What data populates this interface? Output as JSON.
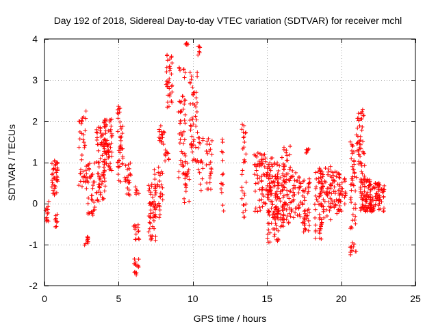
{
  "chart_data": {
    "type": "scatter",
    "title": "Day 192 of 2018, Sidereal Day-to-day VTEC variation (SDTVAR) for receiver mchl",
    "xlabel": "GPS time / hours",
    "ylabel": "SDTVAR / TECUs",
    "xlim": [
      0,
      25
    ],
    "ylim": [
      -2,
      4
    ],
    "xticks": [
      0,
      5,
      10,
      15,
      20,
      25
    ],
    "yticks": [
      -2,
      -1,
      0,
      1,
      2,
      3,
      4
    ],
    "grid": true,
    "marker": "+",
    "color": "#ff0000",
    "series": [
      {
        "name": "SDTVAR",
        "clusters": [
          {
            "x": [
              0.05,
              0.3
            ],
            "y": [
              -0.45,
              0.05
            ],
            "n": 14
          },
          {
            "x": [
              0.5,
              0.9
            ],
            "y": [
              0.2,
              1.05
            ],
            "n": 40
          },
          {
            "x": [
              0.7,
              0.9
            ],
            "y": [
              -0.6,
              -0.2
            ],
            "n": 10
          },
          {
            "x": [
              2.3,
              2.8
            ],
            "y": [
              0.4,
              2.25
            ],
            "n": 35
          },
          {
            "x": [
              2.7,
              2.95
            ],
            "y": [
              -1.05,
              -0.8
            ],
            "n": 10
          },
          {
            "x": [
              2.8,
              3.4
            ],
            "y": [
              -0.3,
              1.0
            ],
            "n": 40
          },
          {
            "x": [
              3.5,
              4.1
            ],
            "y": [
              0.0,
              1.9
            ],
            "n": 70
          },
          {
            "x": [
              4.0,
              4.6
            ],
            "y": [
              0.8,
              2.05
            ],
            "n": 60
          },
          {
            "x": [
              4.9,
              5.3
            ],
            "y": [
              0.5,
              2.4
            ],
            "n": 40
          },
          {
            "x": [
              5.4,
              5.9
            ],
            "y": [
              0.2,
              1.0
            ],
            "n": 25
          },
          {
            "x": [
              6.05,
              6.35
            ],
            "y": [
              -1.8,
              -1.3
            ],
            "n": 14
          },
          {
            "x": [
              6.0,
              6.4
            ],
            "y": [
              -0.9,
              -0.5
            ],
            "n": 14
          },
          {
            "x": [
              6.1,
              6.4
            ],
            "y": [
              0.2,
              0.4
            ],
            "n": 6
          },
          {
            "x": [
              7.0,
              7.5
            ],
            "y": [
              -0.9,
              0.5
            ],
            "n": 45
          },
          {
            "x": [
              7.4,
              8.0
            ],
            "y": [
              -0.4,
              0.95
            ],
            "n": 40
          },
          {
            "x": [
              7.7,
              8.1
            ],
            "y": [
              1.4,
              1.9
            ],
            "n": 18
          },
          {
            "x": [
              8.1,
              8.4
            ],
            "y": [
              0.9,
              1.3
            ],
            "n": 10
          },
          {
            "x": [
              8.2,
              8.6
            ],
            "y": [
              2.3,
              3.75
            ],
            "n": 35
          },
          {
            "x": [
              9.0,
              9.5
            ],
            "y": [
              0.6,
              3.45
            ],
            "n": 50
          },
          {
            "x": [
              9.35,
              9.75
            ],
            "y": [
              0.0,
              1.0
            ],
            "n": 20
          },
          {
            "x": [
              9.5,
              9.7
            ],
            "y": [
              3.85,
              3.9
            ],
            "n": 5
          },
          {
            "x": [
              9.8,
              10.3
            ],
            "y": [
              1.0,
              3.2
            ],
            "n": 45
          },
          {
            "x": [
              10.3,
              10.5
            ],
            "y": [
              3.5,
              3.85
            ],
            "n": 6
          },
          {
            "x": [
              10.3,
              10.7
            ],
            "y": [
              0.3,
              1.9
            ],
            "n": 20
          },
          {
            "x": [
              10.9,
              11.3
            ],
            "y": [
              0.3,
              1.6
            ],
            "n": 25
          },
          {
            "x": [
              11.9,
              12.1
            ],
            "y": [
              -0.25,
              1.6
            ],
            "n": 14
          },
          {
            "x": [
              13.3,
              13.6
            ],
            "y": [
              -0.5,
              2.0
            ],
            "n": 30
          },
          {
            "x": [
              14.1,
              14.7
            ],
            "y": [
              -0.2,
              1.3
            ],
            "n": 35
          },
          {
            "x": [
              14.6,
              15.4
            ],
            "y": [
              -0.1,
              1.2
            ],
            "n": 55
          },
          {
            "x": [
              15.0,
              15.8
            ],
            "y": [
              -0.95,
              0.7
            ],
            "n": 70
          },
          {
            "x": [
              15.5,
              16.2
            ],
            "y": [
              -0.6,
              1.0
            ],
            "n": 60
          },
          {
            "x": [
              16.0,
              16.6
            ],
            "y": [
              -0.5,
              1.4
            ],
            "n": 50
          },
          {
            "x": [
              16.5,
              17.3
            ],
            "y": [
              -0.4,
              0.8
            ],
            "n": 45
          },
          {
            "x": [
              17.4,
              17.9
            ],
            "y": [
              -0.7,
              0.6
            ],
            "n": 45
          },
          {
            "x": [
              17.6,
              17.8
            ],
            "y": [
              1.2,
              1.35
            ],
            "n": 6
          },
          {
            "x": [
              18.2,
              18.7
            ],
            "y": [
              -0.9,
              0.9
            ],
            "n": 45
          },
          {
            "x": [
              18.6,
              19.3
            ],
            "y": [
              -0.6,
              0.9
            ],
            "n": 50
          },
          {
            "x": [
              19.2,
              19.9
            ],
            "y": [
              -0.3,
              0.8
            ],
            "n": 45
          },
          {
            "x": [
              19.8,
              20.3
            ],
            "y": [
              -0.3,
              0.85
            ],
            "n": 30
          },
          {
            "x": [
              20.6,
              21.0
            ],
            "y": [
              -1.25,
              -0.95
            ],
            "n": 12
          },
          {
            "x": [
              20.6,
              21.0
            ],
            "y": [
              -0.65,
              1.5
            ],
            "n": 40
          },
          {
            "x": [
              21.0,
              21.6
            ],
            "y": [
              0.4,
              2.3
            ],
            "n": 50
          },
          {
            "x": [
              21.3,
              22.0
            ],
            "y": [
              -0.2,
              0.6
            ],
            "n": 80
          },
          {
            "x": [
              21.9,
              22.9
            ],
            "y": [
              -0.2,
              0.5
            ],
            "n": 70
          }
        ]
      }
    ]
  }
}
